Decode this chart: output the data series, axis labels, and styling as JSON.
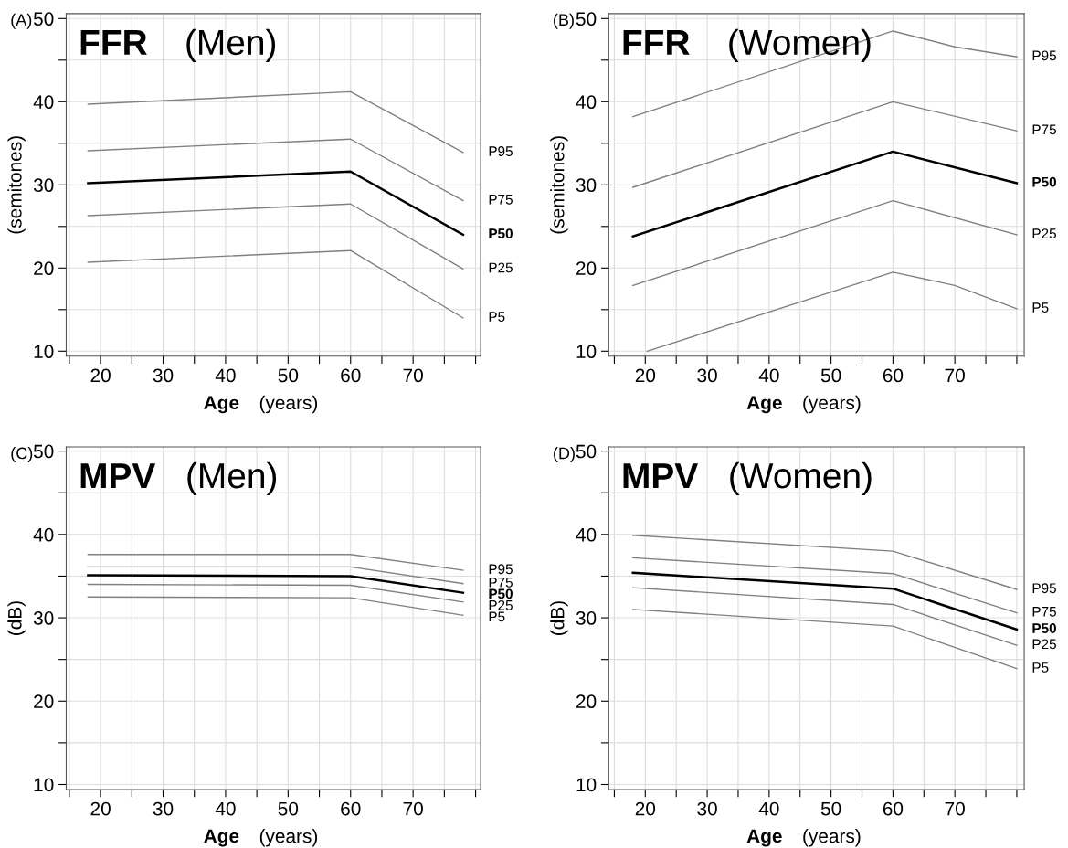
{
  "chart_data": [
    {
      "type": "line",
      "title": "FFR (Men)",
      "xlabel": "Age (years)",
      "ylabel": "(semitones)",
      "annotations": [
        "(A)"
      ],
      "xlim": [
        14.5,
        80.8
      ],
      "ylim": [
        9.4,
        50.6
      ],
      "xticks": [
        {
          "value": 15,
          "label": null
        },
        20,
        {
          "value": 25,
          "label": null
        },
        30,
        {
          "value": 35,
          "label": null
        },
        40,
        {
          "value": 45,
          "label": null
        },
        50,
        {
          "value": 55,
          "label": null
        },
        60,
        {
          "value": 65,
          "label": null
        },
        70,
        {
          "value": 75,
          "label": null
        },
        {
          "value": 80,
          "label": null
        }
      ],
      "yticks": [
        10,
        {
          "value": 15,
          "label": null
        },
        20,
        {
          "value": 25,
          "label": null
        },
        30,
        {
          "value": 35,
          "label": null
        },
        40,
        {
          "value": 45,
          "label": null
        },
        50
      ],
      "grid": true,
      "legend": false,
      "marker": "none",
      "line_style": "solid",
      "x": [
        18,
        60,
        78
      ],
      "series": [
        {
          "name": "P95",
          "color": "#808080",
          "values": [
            39.7,
            41.2,
            33.9
          ]
        },
        {
          "name": "P75",
          "color": "#808080",
          "values": [
            34.1,
            35.5,
            28.1
          ]
        },
        {
          "name": "P50",
          "color": "#000000",
          "values": [
            30.2,
            31.6,
            24.0
          ]
        },
        {
          "name": "P25",
          "color": "#808080",
          "values": [
            26.3,
            27.7,
            19.9
          ]
        },
        {
          "name": "P5",
          "color": "#808080",
          "values": [
            20.7,
            22.1,
            14.0
          ]
        }
      ]
    },
    {
      "type": "line",
      "title": "FFR (Women)",
      "xlabel": "Age (years)",
      "ylabel": "(semitones)",
      "annotations": [
        "(B)"
      ],
      "xlim": [
        14.1,
        81.2
      ],
      "ylim": [
        9.4,
        50.6
      ],
      "xticks": [
        {
          "value": 15,
          "label": null
        },
        20,
        {
          "value": 25,
          "label": null
        },
        30,
        {
          "value": 35,
          "label": null
        },
        40,
        {
          "value": 45,
          "label": null
        },
        50,
        {
          "value": 55,
          "label": null
        },
        60,
        {
          "value": 65,
          "label": null
        },
        70,
        {
          "value": 75,
          "label": null
        },
        {
          "value": 80,
          "label": null
        }
      ],
      "yticks": [
        10,
        {
          "value": 15,
          "label": null
        },
        20,
        {
          "value": 25,
          "label": null
        },
        30,
        {
          "value": 35,
          "label": null
        },
        40,
        {
          "value": 45,
          "label": null
        },
        50
      ],
      "grid": true,
      "legend": false,
      "marker": "none",
      "line_style": "solid",
      "series": [
        {
          "name": "P95",
          "color": "#808080",
          "x": [
            18,
            60,
            70,
            80
          ],
          "values": [
            38.2,
            48.5,
            46.6,
            45.4
          ]
        },
        {
          "name": "P75",
          "color": "#808080",
          "x": [
            18,
            60,
            80
          ],
          "values": [
            29.7,
            40.0,
            36.5
          ]
        },
        {
          "name": "P50",
          "color": "#000000",
          "x": [
            18,
            60,
            80
          ],
          "values": [
            23.8,
            34.0,
            30.2
          ]
        },
        {
          "name": "P25",
          "color": "#808080",
          "x": [
            18,
            60,
            80
          ],
          "values": [
            17.9,
            28.1,
            24.0
          ]
        },
        {
          "name": "P5",
          "color": "#808080",
          "x": [
            20.3,
            60,
            70,
            80
          ],
          "values": [
            10.0,
            19.5,
            17.9,
            15.1
          ]
        }
      ]
    },
    {
      "type": "line",
      "title": "MPV(Men)",
      "xlabel": "Age (years)",
      "ylabel": "(dB)",
      "annotations": [
        "(C)"
      ],
      "xlim": [
        14.5,
        80.8
      ],
      "ylim": [
        9.4,
        50.5
      ],
      "xticks": [
        {
          "value": 15,
          "label": null
        },
        20,
        {
          "value": 25,
          "label": null
        },
        30,
        {
          "value": 35,
          "label": null
        },
        40,
        {
          "value": 45,
          "label": null
        },
        50,
        {
          "value": 55,
          "label": null
        },
        60,
        {
          "value": 65,
          "label": null
        },
        70,
        {
          "value": 75,
          "label": null
        },
        {
          "value": 80,
          "label": null
        }
      ],
      "yticks": [
        10,
        {
          "value": 15,
          "label": null
        },
        20,
        {
          "value": 25,
          "label": null
        },
        30,
        {
          "value": 35,
          "label": null
        },
        40,
        {
          "value": 45,
          "label": null
        },
        50
      ],
      "grid": true,
      "legend": false,
      "marker": "none",
      "line_style": "solid",
      "x": [
        18,
        60,
        78
      ],
      "series": [
        {
          "name": "P95",
          "color": "#808080",
          "values": [
            37.6,
            37.6,
            35.7
          ]
        },
        {
          "name": "P75",
          "color": "#808080",
          "values": [
            36.1,
            36.1,
            34.1
          ]
        },
        {
          "name": "P50",
          "color": "#000000",
          "values": [
            35.1,
            35.0,
            33.0
          ]
        },
        {
          "name": "P25",
          "color": "#808080",
          "values": [
            34.0,
            33.9,
            31.9
          ]
        },
        {
          "name": "P5",
          "color": "#808080",
          "values": [
            32.5,
            32.4,
            30.3
          ]
        }
      ]
    },
    {
      "type": "line",
      "title": "MPV(Women)",
      "xlabel": "Age (years)",
      "ylabel": "(dB)",
      "annotations": [
        "(D)"
      ],
      "xlim": [
        14.1,
        81.2
      ],
      "ylim": [
        9.4,
        50.5
      ],
      "xticks": [
        {
          "value": 15,
          "label": null
        },
        20,
        {
          "value": 25,
          "label": null
        },
        30,
        {
          "value": 35,
          "label": null
        },
        40,
        {
          "value": 45,
          "label": null
        },
        50,
        {
          "value": 55,
          "label": null
        },
        60,
        {
          "value": 65,
          "label": null
        },
        70,
        {
          "value": 75,
          "label": null
        },
        {
          "value": 80,
          "label": null
        }
      ],
      "yticks": [
        10,
        {
          "value": 15,
          "label": null
        },
        20,
        {
          "value": 25,
          "label": null
        },
        30,
        {
          "value": 35,
          "label": null
        },
        40,
        {
          "value": 45,
          "label": null
        },
        50
      ],
      "grid": true,
      "legend": false,
      "marker": "none",
      "line_style": "solid",
      "x": [
        18,
        60,
        80
      ],
      "series": [
        {
          "name": "P95",
          "color": "#808080",
          "values": [
            39.9,
            38.0,
            33.4
          ]
        },
        {
          "name": "P75",
          "color": "#808080",
          "values": [
            37.2,
            35.3,
            30.6
          ]
        },
        {
          "name": "P50",
          "color": "#000000",
          "values": [
            35.4,
            33.5,
            28.6
          ]
        },
        {
          "name": "P25",
          "color": "#808080",
          "values": [
            33.6,
            31.6,
            26.7
          ]
        },
        {
          "name": "P5",
          "color": "#808080",
          "values": [
            31.0,
            29.0,
            23.9
          ]
        }
      ]
    }
  ]
}
